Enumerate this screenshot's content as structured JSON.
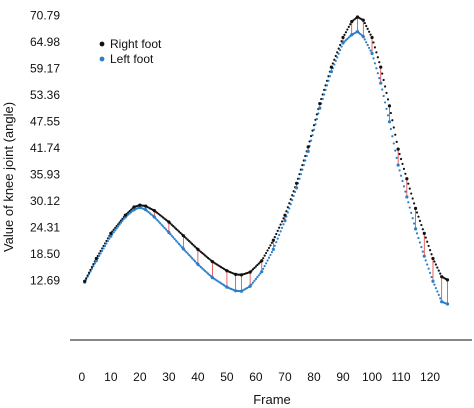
{
  "chart_data": {
    "type": "scatter",
    "title": "",
    "xlabel": "Frame",
    "ylabel": "Value of knee joint (angle)",
    "xlim": [
      -2,
      131
    ],
    "ylim": [
      -0.4,
      71.6
    ],
    "x_ticks": [
      0,
      10,
      20,
      30,
      40,
      50,
      60,
      70,
      80,
      90,
      100,
      110,
      120
    ],
    "y_ticks": [
      12.69,
      18.5,
      24.31,
      30.12,
      35.93,
      41.74,
      47.55,
      53.36,
      59.17,
      64.98,
      70.79
    ],
    "y_tick_labels": [
      "12.69",
      "18.50",
      "24.31",
      "30.12",
      "35.93",
      "41.74",
      "47.55",
      "53.36",
      "59.17",
      "64.98",
      "70.79"
    ],
    "grid": false,
    "legend_position": "top-left",
    "connector_color": "#e01a1a",
    "series": [
      {
        "name": "Right foot",
        "color": "#111111",
        "x": [
          1,
          5,
          10,
          15,
          18,
          20,
          22,
          25,
          30,
          35,
          40,
          45,
          50,
          53,
          55,
          58,
          62,
          66,
          70,
          74,
          78,
          82,
          86,
          90,
          93,
          95,
          97,
          100,
          103,
          106,
          109,
          112,
          115,
          118,
          121,
          124,
          126
        ],
        "y": [
          12.5,
          17.5,
          23.0,
          27.0,
          28.8,
          29.2,
          29.0,
          28.0,
          25.5,
          22.5,
          19.5,
          16.8,
          14.8,
          14.0,
          13.9,
          14.5,
          17.0,
          21.5,
          27.0,
          34.0,
          42.0,
          51.5,
          59.5,
          66.0,
          69.5,
          70.5,
          69.8,
          66.0,
          59.5,
          51.0,
          41.5,
          35.0,
          28.5,
          23.0,
          17.5,
          13.5,
          12.8
        ]
      },
      {
        "name": "Left foot",
        "color": "#2b7fc9",
        "x": [
          1,
          5,
          10,
          15,
          18,
          20,
          22,
          25,
          30,
          35,
          40,
          45,
          50,
          53,
          55,
          58,
          62,
          66,
          70,
          74,
          78,
          82,
          86,
          90,
          93,
          95,
          97,
          100,
          103,
          106,
          109,
          112,
          115,
          118,
          121,
          124,
          126
        ],
        "y": [
          12.3,
          17.0,
          22.4,
          26.6,
          28.2,
          28.7,
          28.2,
          26.6,
          23.2,
          19.6,
          16.2,
          13.3,
          11.2,
          10.4,
          10.3,
          11.4,
          14.6,
          19.5,
          25.8,
          33.0,
          41.0,
          50.5,
          58.5,
          64.8,
          66.6,
          67.3,
          66.2,
          62.5,
          56.0,
          47.5,
          38.0,
          31.0,
          24.0,
          18.0,
          12.5,
          8.0,
          7.5
        ]
      }
    ]
  }
}
